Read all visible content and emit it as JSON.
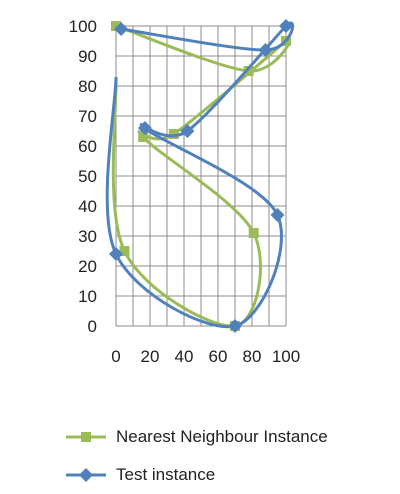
{
  "chart_data": {
    "type": "scatter",
    "title": "",
    "xlabel": "",
    "ylabel": "",
    "xlim": [
      0,
      100
    ],
    "ylim": [
      0,
      100
    ],
    "xticks": [
      0,
      20,
      40,
      60,
      80,
      100
    ],
    "yticks": [
      0,
      10,
      20,
      30,
      40,
      50,
      60,
      70,
      80,
      90,
      100
    ],
    "grid": true,
    "legend_position": "bottom",
    "smoothed_lines": true,
    "series": [
      {
        "name": "Nearest Neighbour Instance",
        "color": "#9BBB59",
        "marker": "square",
        "points": [
          [
            0,
            100
          ],
          [
            78,
            85
          ],
          [
            100,
            95
          ],
          [
            34,
            64
          ],
          [
            16,
            63
          ],
          [
            81,
            31
          ],
          [
            70,
            0
          ],
          [
            5,
            25
          ],
          [
            0,
            83
          ]
        ]
      },
      {
        "name": "Test instance",
        "color": "#4F81BD",
        "marker": "diamond",
        "points": [
          [
            3,
            99
          ],
          [
            88,
            92
          ],
          [
            100,
            100
          ],
          [
            42,
            65
          ],
          [
            17,
            66
          ],
          [
            95,
            37
          ],
          [
            70,
            0
          ],
          [
            0,
            24
          ],
          [
            0,
            83
          ]
        ]
      }
    ]
  }
}
